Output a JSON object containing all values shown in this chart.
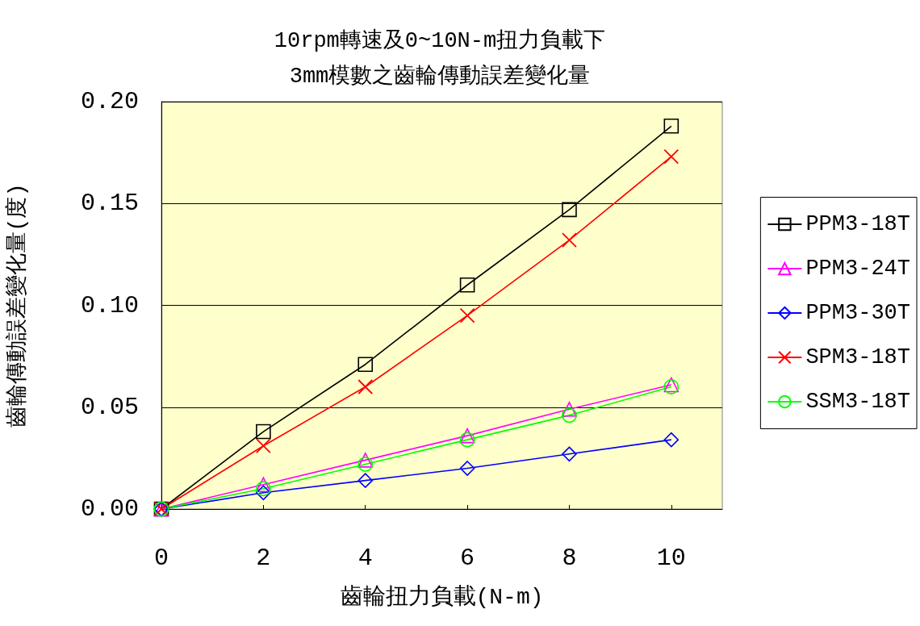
{
  "chart_data": {
    "type": "line",
    "title": "10rpm轉速及0~10N-m扭力負載下\n3mm模數之齒輪傳動誤差變化量",
    "xlabel": "齒輪扭力負載(N-m)",
    "ylabel": "齒輪傳動誤差變化量(度)",
    "x": [
      0,
      2,
      4,
      6,
      8,
      10
    ],
    "series": [
      {
        "name": "PPM3-18T",
        "color": "#000000",
        "marker": "square",
        "values": [
          0,
          0.038,
          0.071,
          0.11,
          0.147,
          0.188
        ]
      },
      {
        "name": "PPM3-24T",
        "color": "#ff00ff",
        "marker": "triangle",
        "values": [
          0,
          0.012,
          0.024,
          0.036,
          0.049,
          0.061
        ]
      },
      {
        "name": "PPM3-30T",
        "color": "#0000ff",
        "marker": "diamond",
        "values": [
          0,
          0.008,
          0.014,
          0.02,
          0.027,
          0.034
        ]
      },
      {
        "name": "SPM3-18T",
        "color": "#ff0000",
        "marker": "cross",
        "values": [
          0,
          0.031,
          0.06,
          0.095,
          0.132,
          0.173
        ]
      },
      {
        "name": "SSM3-18T",
        "color": "#00ff00",
        "marker": "circle",
        "values": [
          0,
          0.01,
          0.022,
          0.034,
          0.046,
          0.06
        ]
      }
    ],
    "xlim": [
      0,
      11
    ],
    "xticks": [
      0,
      2,
      4,
      6,
      8,
      10
    ],
    "ylim": [
      0,
      0.2
    ],
    "yticks": [
      {
        "value": 0,
        "label": "0.00"
      },
      0.05,
      {
        "value": 0.1,
        "label": "0.10"
      },
      0.15,
      {
        "value": 0.2,
        "label": "0.20"
      }
    ],
    "grid": "y",
    "legend": "right",
    "line_style": "solid"
  }
}
